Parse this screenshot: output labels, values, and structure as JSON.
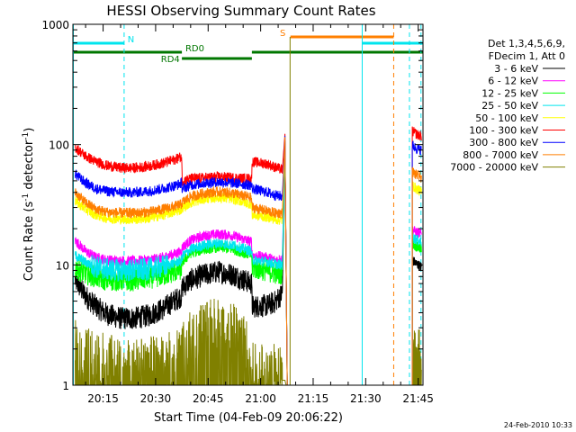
{
  "chart_data": {
    "type": "line",
    "title": "HESSI Observing Summary Count Rates",
    "xlabel": "Start Time (04-Feb-09 20:06:22)",
    "ylabel_main": "Count Rate (s",
    "ylabel_sup1": "-1",
    "ylabel_mid": " detector",
    "ylabel_sup2": "-1",
    "ylabel_end": ")",
    "x_range_minutes": [
      6.37,
      106.37
    ],
    "x_ticks": [
      {
        "label": "20:15",
        "min": 15
      },
      {
        "label": "20:30",
        "min": 30
      },
      {
        "label": "20:45",
        "min": 45
      },
      {
        "label": "21:00",
        "min": 60
      },
      {
        "label": "21:15",
        "min": 75
      },
      {
        "label": "21:30",
        "min": 90
      },
      {
        "label": "21:45",
        "min": 105
      }
    ],
    "y_scale": "log",
    "y_range": [
      1,
      1000
    ],
    "y_ticks": [
      {
        "label": "1",
        "value": 1
      },
      {
        "label": "10",
        "value": 10
      },
      {
        "label": "100",
        "value": 100
      },
      {
        "label": "1000",
        "value": 1000
      }
    ],
    "legend": {
      "line1": "Det 1,3,4,5,6,9,",
      "line2": "FDecim 1, Att 0"
    },
    "flags": [
      {
        "label": "N",
        "color": "#00e5ee",
        "segments": [
          [
            6.37,
            21.0
          ],
          [
            89.0,
            106.37
          ]
        ],
        "label_min": 22.0,
        "level": "top"
      },
      {
        "label": "S",
        "color": "#ff7f00",
        "segments": [
          [
            68.5,
            98.0
          ]
        ],
        "label_min": 65.5,
        "level": "top2"
      },
      {
        "label": "RD0",
        "color": "#007700",
        "segments": [
          [
            6.37,
            37.5
          ],
          [
            57.5,
            106.37
          ]
        ],
        "label_min": 38.5,
        "level": "mid"
      },
      {
        "label": "RD4",
        "color": "#007700",
        "segments": [
          [
            37.5,
            57.5
          ]
        ],
        "label_min": 31.5,
        "level": "low"
      }
    ],
    "vlines": [
      {
        "min": 6.5,
        "color": "#00e5ee",
        "style": "solid"
      },
      {
        "min": 21.0,
        "color": "#00e5ee",
        "style": "dash"
      },
      {
        "min": 89.0,
        "color": "#00e5ee",
        "style": "solid"
      },
      {
        "min": 98.0,
        "color": "#ff7f00",
        "style": "dash"
      },
      {
        "min": 102.5,
        "color": "#00e5ee",
        "style": "dash"
      },
      {
        "min": 105.8,
        "color": "#00e5ee",
        "style": "dash"
      }
    ],
    "x": [
      7,
      10,
      13,
      16,
      20,
      24,
      28,
      32,
      36,
      37.4,
      37.6,
      40,
      44,
      48,
      52,
      57.4,
      57.6,
      62,
      64,
      66.2,
      67
    ],
    "x_tail": [
      103.3,
      104,
      105,
      106
    ],
    "series": [
      {
        "name": "3 - 6 keV",
        "color": "#000000",
        "values": [
          7.5,
          5.5,
          4.5,
          3.9,
          3.6,
          3.6,
          3.8,
          4.3,
          5.2,
          5.5,
          6.5,
          7.5,
          8.3,
          8.8,
          8.3,
          7.0,
          4.5,
          4.6,
          4.9,
          5.8,
          130
        ],
        "tail": [
          11,
          10.5,
          10,
          9.5
        ]
      },
      {
        "name": "6 - 12 keV",
        "color": "#ff00ff",
        "values": [
          16,
          13,
          11.5,
          11,
          10.8,
          10.8,
          11,
          11.5,
          12.5,
          13,
          14,
          16,
          17.5,
          18,
          17.5,
          15.5,
          12,
          11.5,
          11,
          11.2,
          130
        ],
        "tail": [
          20,
          19,
          18.5,
          18
        ]
      },
      {
        "name": "12 - 25 keV",
        "color": "#00ff00",
        "values": [
          9.5,
          8.5,
          8.0,
          7.5,
          7.5,
          7.5,
          7.8,
          8.2,
          9.0,
          9.3,
          10.5,
          12.5,
          13.5,
          14,
          13.5,
          12,
          9.5,
          9.0,
          8.6,
          8.5,
          130
        ],
        "tail": [
          15,
          14.5,
          14,
          13.5
        ]
      },
      {
        "name": "25 - 50 keV",
        "color": "#00e5ee",
        "values": [
          12,
          10.5,
          9.6,
          9.2,
          9.0,
          9.0,
          9.2,
          9.7,
          10.5,
          10.8,
          11.8,
          13.5,
          14.6,
          15.2,
          14.6,
          13,
          11,
          10.6,
          10.2,
          10.0,
          130
        ],
        "tail": [
          17,
          16.5,
          16,
          15.5
        ]
      },
      {
        "name": "50 - 100 keV",
        "color": "#ffff00",
        "values": [
          34,
          29,
          26,
          24.5,
          24,
          24,
          24.5,
          26,
          28,
          29,
          30,
          33,
          35.5,
          36.5,
          35.5,
          32,
          26,
          25,
          24,
          23.5,
          130
        ],
        "tail": [
          46,
          44,
          42,
          40
        ]
      },
      {
        "name": "100 - 300 keV",
        "color": "#ff0000",
        "values": [
          95,
          80,
          72,
          67,
          64,
          64,
          66,
          70,
          76,
          80,
          50,
          52,
          53,
          54,
          53,
          52,
          72,
          69,
          65,
          62,
          130
        ],
        "tail": [
          130,
          125,
          120,
          118
        ]
      },
      {
        "name": "300 - 800 keV",
        "color": "#0000ff",
        "values": [
          57,
          48,
          43,
          41,
          40,
          40,
          41,
          43,
          46,
          48,
          43,
          46,
          48,
          49,
          48,
          46,
          43,
          40,
          38,
          37,
          130
        ],
        "tail": [
          100,
          95,
          92,
          90
        ]
      },
      {
        "name": "800 - 7000 keV",
        "color": "#ff7f00",
        "values": [
          40,
          33,
          29,
          27.5,
          27,
          27,
          27.5,
          29,
          31,
          32,
          33,
          37,
          39.5,
          40.5,
          39.5,
          36,
          30,
          28,
          27,
          27,
          130
        ],
        "tail": [
          60,
          57,
          55,
          53
        ]
      },
      {
        "name": "7000 - 20000 keV",
        "color": "#808000",
        "values": [
          1.6,
          1.4,
          1.3,
          1.2,
          1.15,
          1.1,
          1.15,
          1.2,
          1.3,
          1.4,
          1.6,
          1.9,
          2.2,
          2.5,
          2.2,
          1.5,
          1.1,
          1.1,
          1.1,
          1.1,
          1.1
        ],
        "tail": [
          1.6,
          1.5,
          1.4,
          1.4
        ]
      }
    ],
    "footer_date": "24-Feb-2010 10:33"
  }
}
